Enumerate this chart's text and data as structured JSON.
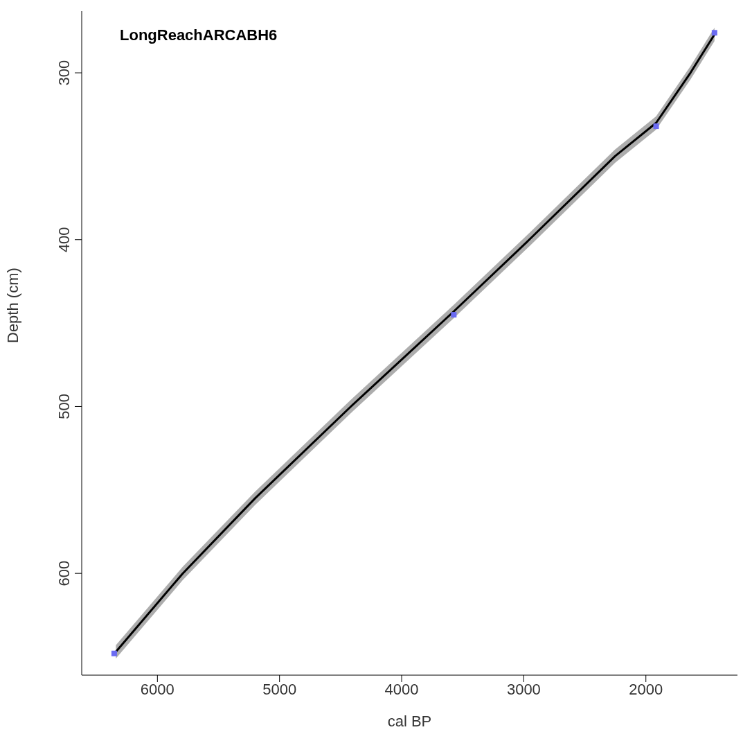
{
  "chart_data": {
    "type": "line",
    "title": "LongReachARCABH6",
    "xlabel": "cal BP",
    "ylabel": "Depth (cm)",
    "x": [
      6340,
      5792,
      5200,
      4416,
      3573,
      2955,
      2253,
      1916,
      1635,
      1438
    ],
    "xlim": [
      6620,
      1250
    ],
    "xticks": [
      6000,
      5000,
      4000,
      3000,
      2000
    ],
    "ylim": [
      661,
      263
    ],
    "yticks": [
      300,
      400,
      500,
      600
    ],
    "series": [
      {
        "color": "#000000",
        "values": [
          647,
          600,
          555,
          500,
          443,
          400,
          350,
          330,
          300,
          277
        ],
        "lower": [
          643,
          596,
          551,
          496,
          439,
          396,
          346,
          326,
          296,
          273
        ],
        "upper": [
          651,
          604,
          559,
          504,
          447,
          404,
          354,
          334,
          304,
          281
        ]
      },
      {
        "type": "scatter",
        "color": "#6b6bf2",
        "marker": "square",
        "x": [
          6354,
          3573,
          1916,
          1438
        ],
        "values": [
          648,
          445,
          332,
          276
        ]
      }
    ],
    "line_style": "solid",
    "marker": "none"
  }
}
